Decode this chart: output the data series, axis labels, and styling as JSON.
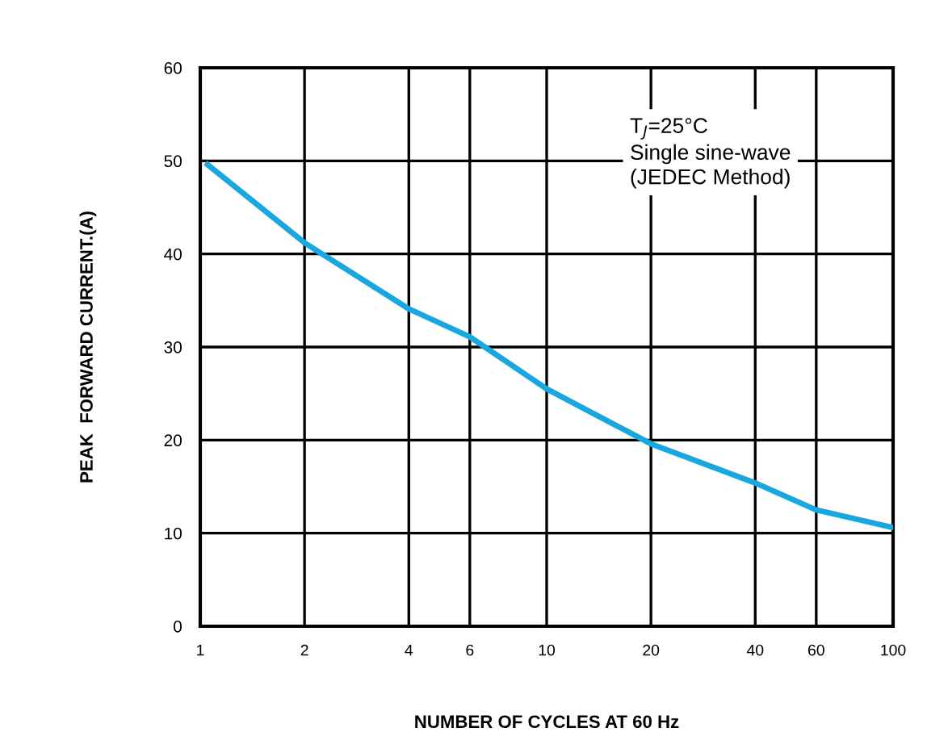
{
  "chart_data": {
    "type": "line",
    "xlabel": "NUMBER OF CYCLES AT 60 Hz",
    "ylabel": "PEAK  FORWARD CURRENT.(A)",
    "annotations": [
      "T$_{J}$=25°C\nSingle sine-wave\n(JEDEC Method)"
    ],
    "series": [
      {
        "color": "#1aa7e0",
        "x": [
          1.05,
          2,
          4,
          6,
          10,
          20,
          40,
          60,
          100
        ],
        "values": [
          49.6,
          41.2,
          34.1,
          31.1,
          25.5,
          19.6,
          15.4,
          12.5,
          10.6
        ]
      }
    ],
    "log": "x",
    "xlim": [
      1,
      100
    ],
    "xticks": [
      1,
      2,
      4,
      6,
      10,
      20,
      40,
      60,
      100
    ],
    "ylim": [
      0,
      60
    ],
    "yticks": [
      0,
      10,
      20,
      30,
      40,
      50,
      60
    ],
    "grid": true,
    "marker": "none",
    "line_style": "solid"
  }
}
